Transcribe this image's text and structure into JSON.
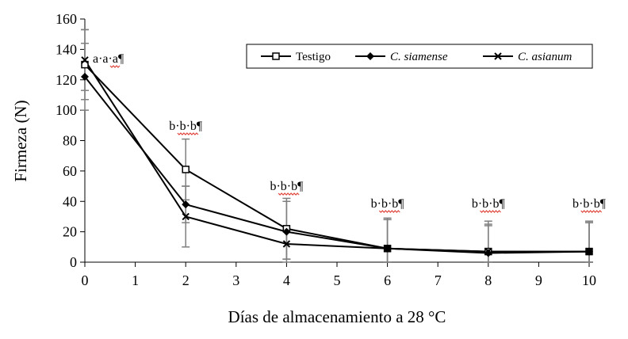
{
  "chart_data": {
    "type": "line",
    "ylabel": "Firmeza (N)",
    "xlabel": "Días de almacenamiento a 28 °C",
    "xlim": [
      0,
      10
    ],
    "ylim": [
      0,
      160
    ],
    "xticks": [
      0,
      1,
      2,
      3,
      4,
      5,
      6,
      7,
      8,
      9,
      10
    ],
    "yticks": [
      0,
      20,
      40,
      60,
      80,
      100,
      120,
      140,
      160
    ],
    "grid": false,
    "legend_position": "top-right",
    "x": [
      0,
      2,
      4,
      6,
      8,
      10
    ],
    "series": [
      {
        "name": "Testigo",
        "marker": "open-square",
        "values": [
          130,
          61,
          22,
          9,
          7,
          7
        ],
        "error": [
          23,
          20,
          20,
          20,
          20,
          20
        ]
      },
      {
        "name": "C. siamense",
        "marker": "filled-diamond",
        "values": [
          122,
          38,
          20,
          9,
          6,
          7
        ],
        "error": [
          22,
          12,
          20,
          19,
          19,
          19
        ]
      },
      {
        "name": "C. asianum",
        "marker": "x-cross",
        "values": [
          133,
          30,
          12,
          9,
          7,
          7
        ],
        "error": [
          20,
          20,
          10,
          19,
          17,
          19
        ]
      }
    ],
    "annotations": [
      {
        "x": 0,
        "text": "a·a·a¶"
      },
      {
        "x": 2,
        "text": "b·b·b¶"
      },
      {
        "x": 4,
        "text": "b·b·b¶"
      },
      {
        "x": 6,
        "text": "b·b·b¶"
      },
      {
        "x": 8,
        "text": "b·b·b¶"
      },
      {
        "x": 10,
        "text": "b·b·b¶"
      }
    ],
    "colors": {
      "line": "#000000",
      "error_bar": "#7f7f7f",
      "spellcheck_underline": "#e0443a"
    }
  }
}
